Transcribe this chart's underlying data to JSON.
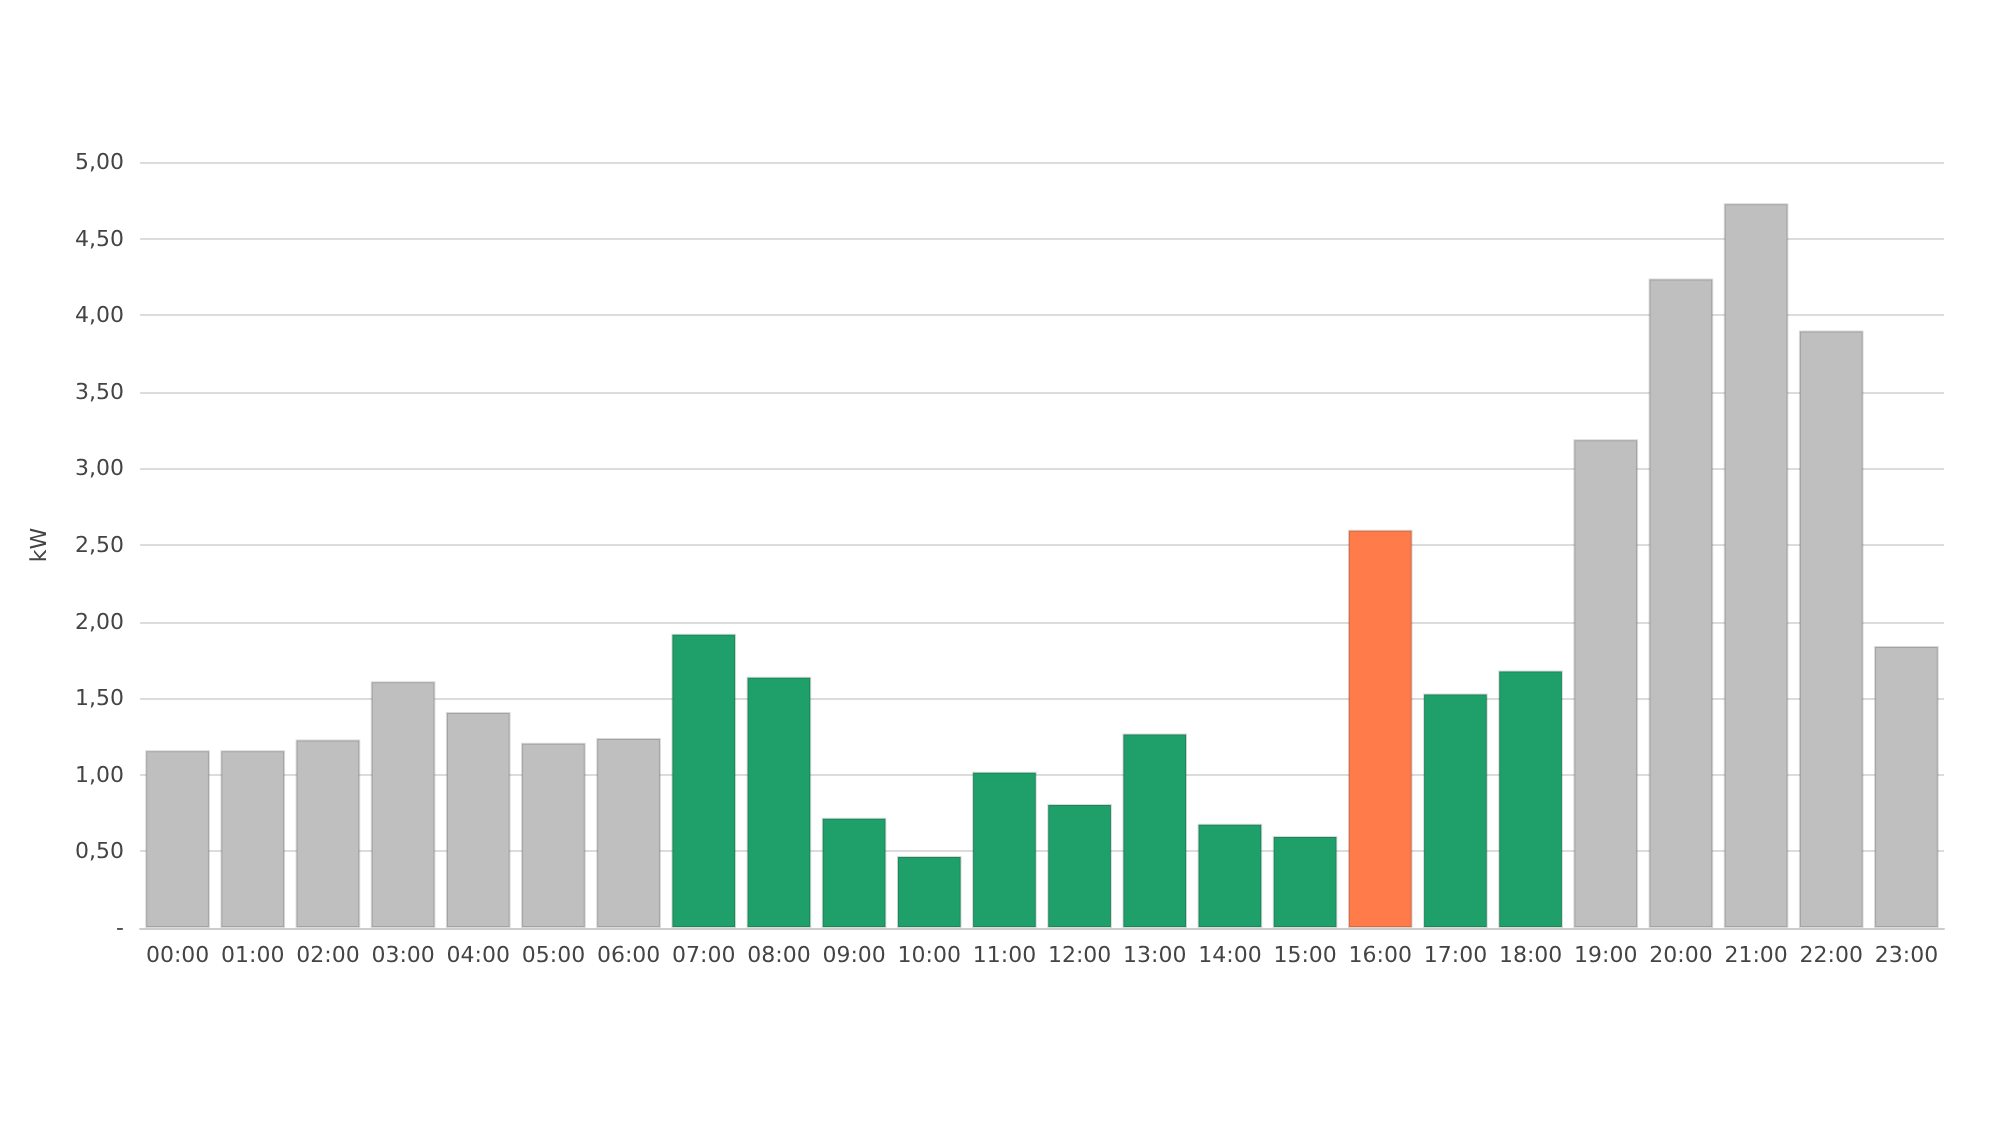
{
  "chart_data": {
    "type": "bar",
    "ylabel": "kW",
    "categories": [
      "00:00",
      "01:00",
      "02:00",
      "03:00",
      "04:00",
      "05:00",
      "06:00",
      "07:00",
      "08:00",
      "09:00",
      "10:00",
      "11:00",
      "12:00",
      "13:00",
      "14:00",
      "15:00",
      "16:00",
      "17:00",
      "18:00",
      "19:00",
      "20:00",
      "21:00",
      "22:00",
      "23:00"
    ],
    "values": [
      1.16,
      1.16,
      1.23,
      1.61,
      1.41,
      1.21,
      1.24,
      1.92,
      1.64,
      0.72,
      0.47,
      1.02,
      0.81,
      1.27,
      0.68,
      0.6,
      2.6,
      1.53,
      1.68,
      3.19,
      4.24,
      4.73,
      3.9,
      1.84
    ],
    "colors": [
      "#bfbfbf",
      "#bfbfbf",
      "#bfbfbf",
      "#bfbfbf",
      "#bfbfbf",
      "#bfbfbf",
      "#bfbfbf",
      "#1fa06a",
      "#1fa06a",
      "#1fa06a",
      "#1fa06a",
      "#1fa06a",
      "#1fa06a",
      "#1fa06a",
      "#1fa06a",
      "#1fa06a",
      "#ff7c4a",
      "#1fa06a",
      "#1fa06a",
      "#bfbfbf",
      "#bfbfbf",
      "#bfbfbf",
      "#bfbfbf",
      "#bfbfbf"
    ],
    "ylim": [
      0,
      5
    ],
    "yticks": [
      {
        "value": 0,
        "label": "-"
      },
      {
        "value": 0.5,
        "label": "0,50"
      },
      {
        "value": 1,
        "label": "1,00"
      },
      {
        "value": 1.5,
        "label": "1,50"
      },
      {
        "value": 2,
        "label": "2,00"
      },
      {
        "value": 2.5,
        "label": "2,50"
      },
      {
        "value": 3,
        "label": "3,00"
      },
      {
        "value": 3.5,
        "label": "3,50"
      },
      {
        "value": 4,
        "label": "4,00"
      },
      {
        "value": 4.5,
        "label": "4,50"
      },
      {
        "value": 5,
        "label": "5,00"
      }
    ],
    "grid": "y"
  }
}
